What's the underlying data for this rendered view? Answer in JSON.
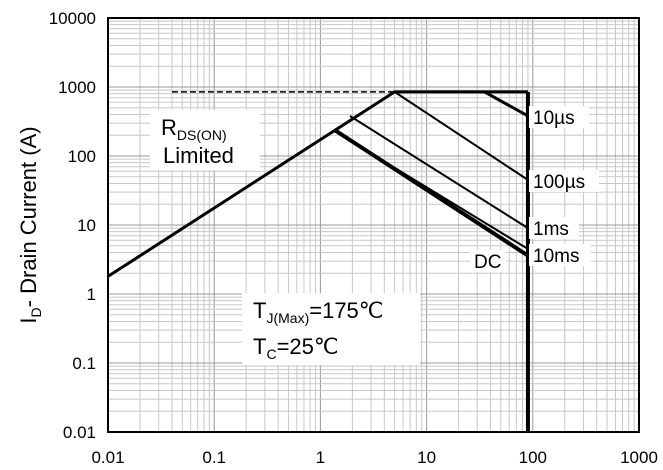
{
  "chart_data": {
    "type": "line",
    "xscale": "log",
    "yscale": "log",
    "xlim": [
      0.01,
      1000
    ],
    "ylim": [
      0.01,
      10000
    ],
    "grid": true,
    "ylabel_main": "I",
    "ylabel_sub": "D",
    "ylabel_rest": "- Drain Current (A)",
    "xticks": [
      "0.01",
      "0.1",
      "1",
      "10",
      "100",
      "1000"
    ],
    "yticks": [
      "0.01",
      "0.1",
      "1",
      "10",
      "100",
      "1000",
      "10000"
    ],
    "series": [
      {
        "name": "10µs",
        "x": [
          0.01,
          5,
          90
        ],
        "y": [
          1.8,
          850,
          850
        ]
      },
      {
        "name": "10µs",
        "x": [
          35,
          90
        ],
        "y": [
          850,
          380
        ]
      },
      {
        "name": "100µs",
        "x": [
          5,
          90
        ],
        "y": [
          850,
          45
        ]
      },
      {
        "name": "1ms",
        "x": [
          1.9,
          90
        ],
        "y": [
          380,
          9
        ]
      },
      {
        "name": "10ms",
        "x": [
          1.35,
          90
        ],
        "y": [
          230,
          4.5
        ]
      },
      {
        "name": "DC",
        "x": [
          1.35,
          90
        ],
        "y": [
          240,
          3.6
        ]
      },
      {
        "name": "DC",
        "x": [
          90,
          90
        ],
        "y": [
          850,
          0.01
        ]
      }
    ],
    "rds_limit": {
      "x": [
        0.04,
        5
      ],
      "y": [
        850,
        850
      ]
    },
    "annotations": {
      "rds_main": "R",
      "rds_sub": "DS(ON)",
      "rds_line2": "Limited",
      "tj_main": "T",
      "tj_sub": "J(Max)",
      "tj_value": "=175℃",
      "tc_main": "T",
      "tc_sub": "C",
      "tc_value": "=25℃",
      "label_10us": "10µs",
      "label_100us": "100µs",
      "label_1ms": "1ms",
      "label_10ms": "10ms",
      "label_dc": "DC"
    }
  }
}
